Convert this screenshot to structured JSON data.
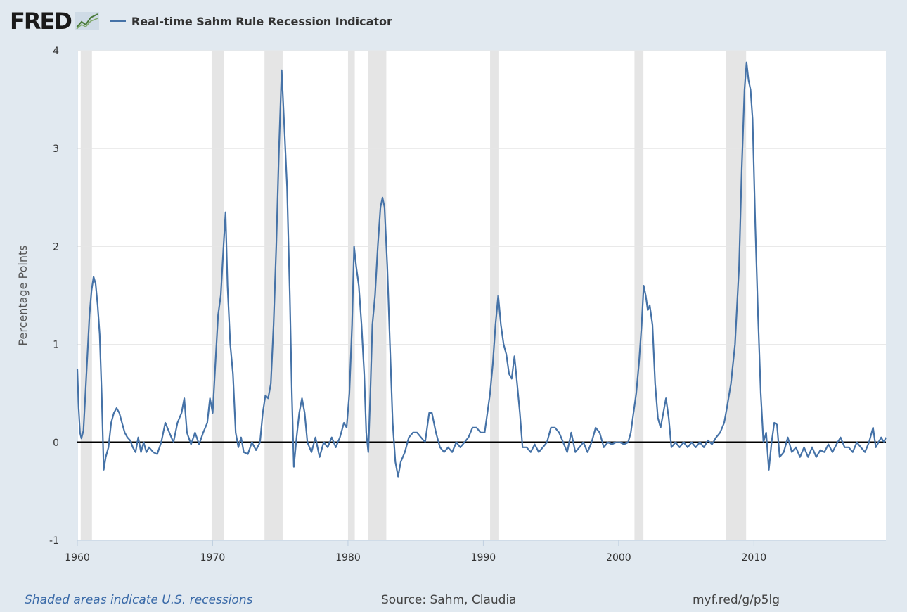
{
  "header": {
    "logo_text": "FRED",
    "series_label": "Real-time Sahm Rule Recession Indicator"
  },
  "footer": {
    "note": "Shaded areas indicate U.S. recessions",
    "source": "Source: Sahm, Claudia",
    "url": "myf.red/g/p5lg"
  },
  "colors": {
    "line": "#4572a7",
    "recession": "#e5e5e5",
    "plot_bg": "#ffffff",
    "page_bg": "#e1e9f0"
  },
  "chart_data": {
    "type": "line",
    "title": "Real-time Sahm Rule Recession Indicator",
    "xlabel": "",
    "ylabel": "Percentage Points",
    "xlim": [
      1960.0,
      2019.75
    ],
    "ylim": [
      -1,
      4
    ],
    "x_ticks": [
      1960,
      1970,
      1980,
      1990,
      2000,
      2010
    ],
    "y_ticks": [
      -1,
      0,
      1,
      2,
      3,
      4
    ],
    "grid": true,
    "zero_line": true,
    "legend": "top-left",
    "recessions": [
      [
        1960.25,
        1961.08
      ],
      [
        1969.92,
        1970.83
      ],
      [
        1973.83,
        1975.17
      ],
      [
        1980.0,
        1980.5
      ],
      [
        1981.5,
        1982.83
      ],
      [
        1990.5,
        1991.17
      ],
      [
        2001.17,
        2001.83
      ],
      [
        2007.92,
        2009.42
      ]
    ],
    "series": [
      {
        "name": "Real-time Sahm Rule Recession Indicator",
        "points": [
          [
            1960.0,
            0.75
          ],
          [
            1960.1,
            0.35
          ],
          [
            1960.2,
            0.1
          ],
          [
            1960.3,
            0.04
          ],
          [
            1960.45,
            0.12
          ],
          [
            1960.6,
            0.5
          ],
          [
            1960.75,
            0.9
          ],
          [
            1960.9,
            1.3
          ],
          [
            1961.05,
            1.55
          ],
          [
            1961.2,
            1.69
          ],
          [
            1961.35,
            1.62
          ],
          [
            1961.5,
            1.4
          ],
          [
            1961.65,
            1.1
          ],
          [
            1961.8,
            0.5
          ],
          [
            1961.95,
            -0.28
          ],
          [
            1962.1,
            -0.15
          ],
          [
            1962.3,
            -0.05
          ],
          [
            1962.5,
            0.2
          ],
          [
            1962.7,
            0.3
          ],
          [
            1962.9,
            0.35
          ],
          [
            1963.1,
            0.3
          ],
          [
            1963.3,
            0.2
          ],
          [
            1963.5,
            0.1
          ],
          [
            1963.7,
            0.05
          ],
          [
            1963.9,
            0.02
          ],
          [
            1964.1,
            -0.05
          ],
          [
            1964.3,
            -0.1
          ],
          [
            1964.5,
            0.05
          ],
          [
            1964.7,
            -0.1
          ],
          [
            1964.9,
            0.0
          ],
          [
            1965.1,
            -0.1
          ],
          [
            1965.3,
            -0.05
          ],
          [
            1965.6,
            -0.1
          ],
          [
            1965.9,
            -0.12
          ],
          [
            1966.2,
            0.0
          ],
          [
            1966.5,
            0.2
          ],
          [
            1966.8,
            0.1
          ],
          [
            1967.1,
            0.0
          ],
          [
            1967.4,
            0.2
          ],
          [
            1967.7,
            0.3
          ],
          [
            1967.9,
            0.45
          ],
          [
            1968.1,
            0.1
          ],
          [
            1968.4,
            -0.02
          ],
          [
            1968.7,
            0.1
          ],
          [
            1969.0,
            -0.02
          ],
          [
            1969.3,
            0.1
          ],
          [
            1969.6,
            0.2
          ],
          [
            1969.8,
            0.45
          ],
          [
            1970.0,
            0.3
          ],
          [
            1970.2,
            0.8
          ],
          [
            1970.4,
            1.3
          ],
          [
            1970.6,
            1.5
          ],
          [
            1970.8,
            2.0
          ],
          [
            1970.95,
            2.35
          ],
          [
            1971.1,
            1.6
          ],
          [
            1971.3,
            1.0
          ],
          [
            1971.5,
            0.7
          ],
          [
            1971.7,
            0.1
          ],
          [
            1971.9,
            -0.05
          ],
          [
            1972.1,
            0.05
          ],
          [
            1972.3,
            -0.1
          ],
          [
            1972.6,
            -0.12
          ],
          [
            1972.9,
            0.0
          ],
          [
            1973.2,
            -0.08
          ],
          [
            1973.5,
            0.0
          ],
          [
            1973.7,
            0.3
          ],
          [
            1973.9,
            0.48
          ],
          [
            1974.1,
            0.45
          ],
          [
            1974.3,
            0.6
          ],
          [
            1974.5,
            1.2
          ],
          [
            1974.7,
            2.0
          ],
          [
            1974.9,
            3.0
          ],
          [
            1975.1,
            3.8
          ],
          [
            1975.3,
            3.2
          ],
          [
            1975.5,
            2.6
          ],
          [
            1975.7,
            1.5
          ],
          [
            1975.85,
            0.5
          ],
          [
            1976.0,
            -0.25
          ],
          [
            1976.2,
            0.05
          ],
          [
            1976.4,
            0.3
          ],
          [
            1976.6,
            0.45
          ],
          [
            1976.8,
            0.3
          ],
          [
            1977.0,
            0.0
          ],
          [
            1977.3,
            -0.1
          ],
          [
            1977.6,
            0.05
          ],
          [
            1977.9,
            -0.15
          ],
          [
            1978.2,
            0.0
          ],
          [
            1978.5,
            -0.05
          ],
          [
            1978.8,
            0.05
          ],
          [
            1979.1,
            -0.05
          ],
          [
            1979.4,
            0.05
          ],
          [
            1979.7,
            0.2
          ],
          [
            1979.9,
            0.15
          ],
          [
            1980.1,
            0.5
          ],
          [
            1980.3,
            1.2
          ],
          [
            1980.45,
            2.0
          ],
          [
            1980.6,
            1.8
          ],
          [
            1980.8,
            1.6
          ],
          [
            1981.0,
            1.2
          ],
          [
            1981.2,
            0.7
          ],
          [
            1981.35,
            0.1
          ],
          [
            1981.5,
            -0.1
          ],
          [
            1981.65,
            0.5
          ],
          [
            1981.8,
            1.2
          ],
          [
            1982.0,
            1.5
          ],
          [
            1982.2,
            2.0
          ],
          [
            1982.4,
            2.4
          ],
          [
            1982.55,
            2.5
          ],
          [
            1982.7,
            2.4
          ],
          [
            1982.9,
            1.8
          ],
          [
            1983.1,
            1.0
          ],
          [
            1983.3,
            0.2
          ],
          [
            1983.5,
            -0.2
          ],
          [
            1983.7,
            -0.35
          ],
          [
            1983.9,
            -0.2
          ],
          [
            1984.2,
            -0.1
          ],
          [
            1984.5,
            0.05
          ],
          [
            1984.8,
            0.1
          ],
          [
            1985.1,
            0.1
          ],
          [
            1985.4,
            0.05
          ],
          [
            1985.7,
            0.0
          ],
          [
            1986.0,
            0.3
          ],
          [
            1986.2,
            0.3
          ],
          [
            1986.5,
            0.1
          ],
          [
            1986.8,
            -0.05
          ],
          [
            1987.1,
            -0.1
          ],
          [
            1987.4,
            -0.05
          ],
          [
            1987.7,
            -0.1
          ],
          [
            1988.0,
            0.0
          ],
          [
            1988.3,
            -0.05
          ],
          [
            1988.6,
            0.0
          ],
          [
            1988.9,
            0.05
          ],
          [
            1989.2,
            0.15
          ],
          [
            1989.5,
            0.15
          ],
          [
            1989.8,
            0.1
          ],
          [
            1990.1,
            0.1
          ],
          [
            1990.3,
            0.3
          ],
          [
            1990.5,
            0.5
          ],
          [
            1990.7,
            0.8
          ],
          [
            1990.9,
            1.2
          ],
          [
            1991.1,
            1.5
          ],
          [
            1991.3,
            1.2
          ],
          [
            1991.5,
            1.0
          ],
          [
            1991.7,
            0.9
          ],
          [
            1991.9,
            0.7
          ],
          [
            1992.1,
            0.65
          ],
          [
            1992.3,
            0.88
          ],
          [
            1992.5,
            0.6
          ],
          [
            1992.7,
            0.3
          ],
          [
            1992.9,
            -0.05
          ],
          [
            1993.2,
            -0.05
          ],
          [
            1993.5,
            -0.1
          ],
          [
            1993.8,
            -0.02
          ],
          [
            1994.1,
            -0.1
          ],
          [
            1994.4,
            -0.05
          ],
          [
            1994.7,
            0.0
          ],
          [
            1995.0,
            0.15
          ],
          [
            1995.3,
            0.15
          ],
          [
            1995.6,
            0.1
          ],
          [
            1995.9,
            0.0
          ],
          [
            1996.2,
            -0.1
          ],
          [
            1996.5,
            0.1
          ],
          [
            1996.8,
            -0.1
          ],
          [
            1997.1,
            -0.05
          ],
          [
            1997.4,
            0.0
          ],
          [
            1997.7,
            -0.1
          ],
          [
            1998.0,
            0.0
          ],
          [
            1998.3,
            0.15
          ],
          [
            1998.6,
            0.1
          ],
          [
            1998.9,
            -0.05
          ],
          [
            1999.2,
            0.0
          ],
          [
            1999.5,
            -0.02
          ],
          [
            1999.8,
            0.0
          ],
          [
            2000.1,
            0.0
          ],
          [
            2000.4,
            -0.02
          ],
          [
            2000.7,
            0.0
          ],
          [
            2000.9,
            0.1
          ],
          [
            2001.1,
            0.3
          ],
          [
            2001.3,
            0.5
          ],
          [
            2001.5,
            0.8
          ],
          [
            2001.7,
            1.2
          ],
          [
            2001.85,
            1.6
          ],
          [
            2002.0,
            1.5
          ],
          [
            2002.15,
            1.35
          ],
          [
            2002.3,
            1.4
          ],
          [
            2002.5,
            1.2
          ],
          [
            2002.7,
            0.6
          ],
          [
            2002.9,
            0.25
          ],
          [
            2003.1,
            0.15
          ],
          [
            2003.3,
            0.3
          ],
          [
            2003.5,
            0.45
          ],
          [
            2003.7,
            0.25
          ],
          [
            2003.9,
            -0.05
          ],
          [
            2004.2,
            0.0
          ],
          [
            2004.5,
            -0.05
          ],
          [
            2004.8,
            0.0
          ],
          [
            2005.1,
            -0.05
          ],
          [
            2005.4,
            0.0
          ],
          [
            2005.7,
            -0.05
          ],
          [
            2006.0,
            0.0
          ],
          [
            2006.3,
            -0.05
          ],
          [
            2006.6,
            0.02
          ],
          [
            2006.9,
            -0.02
          ],
          [
            2007.2,
            0.05
          ],
          [
            2007.5,
            0.1
          ],
          [
            2007.8,
            0.2
          ],
          [
            2008.0,
            0.35
          ],
          [
            2008.3,
            0.6
          ],
          [
            2008.6,
            1.0
          ],
          [
            2008.9,
            1.8
          ],
          [
            2009.1,
            2.8
          ],
          [
            2009.3,
            3.6
          ],
          [
            2009.45,
            3.88
          ],
          [
            2009.6,
            3.7
          ],
          [
            2009.75,
            3.6
          ],
          [
            2009.9,
            3.3
          ],
          [
            2010.1,
            2.2
          ],
          [
            2010.3,
            1.3
          ],
          [
            2010.5,
            0.5
          ],
          [
            2010.7,
            0.0
          ],
          [
            2010.9,
            0.1
          ],
          [
            2011.1,
            -0.28
          ],
          [
            2011.3,
            0.0
          ],
          [
            2011.5,
            0.2
          ],
          [
            2011.7,
            0.18
          ],
          [
            2011.9,
            -0.15
          ],
          [
            2012.2,
            -0.1
          ],
          [
            2012.5,
            0.05
          ],
          [
            2012.8,
            -0.1
          ],
          [
            2013.1,
            -0.05
          ],
          [
            2013.4,
            -0.15
          ],
          [
            2013.7,
            -0.05
          ],
          [
            2014.0,
            -0.15
          ],
          [
            2014.3,
            -0.05
          ],
          [
            2014.6,
            -0.15
          ],
          [
            2014.9,
            -0.08
          ],
          [
            2015.2,
            -0.1
          ],
          [
            2015.5,
            -0.02
          ],
          [
            2015.8,
            -0.1
          ],
          [
            2016.1,
            -0.02
          ],
          [
            2016.4,
            0.05
          ],
          [
            2016.7,
            -0.05
          ],
          [
            2017.0,
            -0.05
          ],
          [
            2017.3,
            -0.1
          ],
          [
            2017.6,
            0.0
          ],
          [
            2017.9,
            -0.05
          ],
          [
            2018.2,
            -0.1
          ],
          [
            2018.5,
            0.0
          ],
          [
            2018.8,
            0.15
          ],
          [
            2019.0,
            -0.05
          ],
          [
            2019.2,
            0.0
          ],
          [
            2019.4,
            0.05
          ],
          [
            2019.6,
            0.0
          ],
          [
            2019.75,
            0.05
          ]
        ]
      }
    ]
  }
}
